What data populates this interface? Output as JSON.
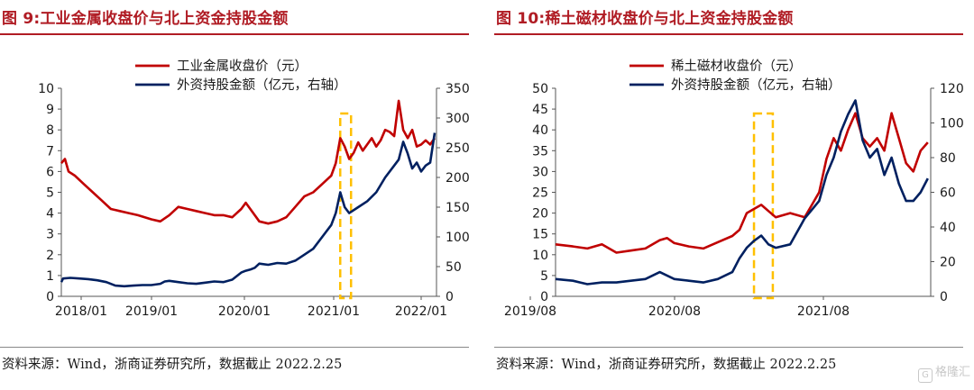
{
  "colors": {
    "red": "#c00000",
    "navy": "#002060",
    "highlight": "#ffc000",
    "title": "#b01c24"
  },
  "left": {
    "title": "图 9:工业金属收盘价与北上资金持股金额",
    "source": "资料来源：Wind，浙商证券研究所，数据截止 2022.2.25",
    "chart_data": {
      "type": "line",
      "x_ticks": [
        "2018/01",
        "2019/01",
        "2020/01",
        "2021/01",
        "2022/01"
      ],
      "y_left_ticks": [
        "0",
        "1",
        "2",
        "3",
        "4",
        "5",
        "6",
        "7",
        "8",
        "9",
        "10"
      ],
      "y_right_ticks": [
        "0",
        "50",
        "100",
        "150",
        "200",
        "250",
        "300",
        "350"
      ],
      "ylim_left": [
        0,
        10
      ],
      "ylim_right": [
        0,
        350
      ],
      "xlim": [
        2018.0,
        2022.17
      ],
      "highlight_x": [
        2021.1,
        2021.22
      ],
      "legend": "top-left",
      "series": [
        {
          "name": "工业金属收盘价（元）",
          "axis": "left",
          "color": "#c00000",
          "points": [
            [
              2018.0,
              6.4
            ],
            [
              2018.04,
              6.6
            ],
            [
              2018.08,
              6.0
            ],
            [
              2018.15,
              5.8
            ],
            [
              2018.25,
              5.4
            ],
            [
              2018.35,
              5.0
            ],
            [
              2018.45,
              4.6
            ],
            [
              2018.55,
              4.2
            ],
            [
              2018.65,
              4.1
            ],
            [
              2018.75,
              4.0
            ],
            [
              2018.85,
              3.9
            ],
            [
              2019.0,
              3.7
            ],
            [
              2019.1,
              3.6
            ],
            [
              2019.2,
              3.9
            ],
            [
              2019.3,
              4.3
            ],
            [
              2019.4,
              4.2
            ],
            [
              2019.5,
              4.1
            ],
            [
              2019.6,
              4.0
            ],
            [
              2019.7,
              3.9
            ],
            [
              2019.8,
              3.9
            ],
            [
              2019.9,
              3.8
            ],
            [
              2020.0,
              4.2
            ],
            [
              2020.05,
              4.5
            ],
            [
              2020.1,
              4.2
            ],
            [
              2020.2,
              3.6
            ],
            [
              2020.3,
              3.5
            ],
            [
              2020.4,
              3.6
            ],
            [
              2020.5,
              3.8
            ],
            [
              2020.6,
              4.3
            ],
            [
              2020.7,
              4.8
            ],
            [
              2020.8,
              5.0
            ],
            [
              2020.9,
              5.4
            ],
            [
              2021.0,
              5.8
            ],
            [
              2021.05,
              6.4
            ],
            [
              2021.1,
              7.6
            ],
            [
              2021.15,
              7.2
            ],
            [
              2021.2,
              6.6
            ],
            [
              2021.25,
              6.9
            ],
            [
              2021.3,
              7.4
            ],
            [
              2021.35,
              7.0
            ],
            [
              2021.4,
              7.3
            ],
            [
              2021.45,
              7.6
            ],
            [
              2021.5,
              7.2
            ],
            [
              2021.55,
              7.5
            ],
            [
              2021.6,
              8.0
            ],
            [
              2021.65,
              7.9
            ],
            [
              2021.7,
              7.7
            ],
            [
              2021.75,
              9.4
            ],
            [
              2021.8,
              8.0
            ],
            [
              2021.85,
              7.6
            ],
            [
              2021.9,
              8.0
            ],
            [
              2021.95,
              7.2
            ],
            [
              2022.0,
              7.3
            ],
            [
              2022.05,
              7.5
            ],
            [
              2022.1,
              7.3
            ],
            [
              2022.15,
              7.6
            ]
          ]
        },
        {
          "name": "外资持股金额（亿元，右轴）",
          "axis": "right",
          "color": "#002060",
          "points": [
            [
              2018.0,
              24
            ],
            [
              2018.02,
              30
            ],
            [
              2018.1,
              31
            ],
            [
              2018.2,
              30
            ],
            [
              2018.3,
              29
            ],
            [
              2018.4,
              27
            ],
            [
              2018.5,
              24
            ],
            [
              2018.6,
              18
            ],
            [
              2018.7,
              17
            ],
            [
              2018.8,
              18
            ],
            [
              2018.9,
              19
            ],
            [
              2019.0,
              19
            ],
            [
              2019.1,
              21
            ],
            [
              2019.15,
              25
            ],
            [
              2019.2,
              26
            ],
            [
              2019.3,
              24
            ],
            [
              2019.4,
              22
            ],
            [
              2019.5,
              21
            ],
            [
              2019.6,
              23
            ],
            [
              2019.7,
              25
            ],
            [
              2019.8,
              24
            ],
            [
              2019.9,
              28
            ],
            [
              2020.0,
              40
            ],
            [
              2020.05,
              43
            ],
            [
              2020.1,
              45
            ],
            [
              2020.15,
              48
            ],
            [
              2020.2,
              55
            ],
            [
              2020.3,
              53
            ],
            [
              2020.4,
              56
            ],
            [
              2020.5,
              55
            ],
            [
              2020.6,
              60
            ],
            [
              2020.7,
              70
            ],
            [
              2020.8,
              80
            ],
            [
              2020.9,
              100
            ],
            [
              2021.0,
              120
            ],
            [
              2021.05,
              140
            ],
            [
              2021.1,
              175
            ],
            [
              2021.15,
              150
            ],
            [
              2021.2,
              140
            ],
            [
              2021.3,
              150
            ],
            [
              2021.4,
              160
            ],
            [
              2021.5,
              175
            ],
            [
              2021.6,
              200
            ],
            [
              2021.7,
              220
            ],
            [
              2021.75,
              230
            ],
            [
              2021.8,
              260
            ],
            [
              2021.85,
              240
            ],
            [
              2021.9,
              215
            ],
            [
              2021.95,
              225
            ],
            [
              2022.0,
              210
            ],
            [
              2022.05,
              220
            ],
            [
              2022.1,
              225
            ],
            [
              2022.15,
              275
            ]
          ]
        }
      ]
    }
  },
  "right": {
    "title": "图 10:稀土磁材收盘价与北上资金持股金额",
    "source": "资料来源：Wind，浙商证券研究所，数据截止 2022.2.25",
    "chart_data": {
      "type": "line",
      "x_ticks": [
        "2019/08",
        "2020/08",
        "2021/08"
      ],
      "y_left_ticks": [
        "0",
        "5",
        "10",
        "15",
        "20",
        "25",
        "30",
        "35",
        "40",
        "45",
        "50"
      ],
      "y_right_ticks": [
        "0",
        "20",
        "40",
        "60",
        "80",
        "100",
        "120"
      ],
      "ylim_left": [
        0,
        50
      ],
      "ylim_right": [
        0,
        120
      ],
      "xlim": [
        2019.58,
        2022.17
      ],
      "highlight_x": [
        2020.95,
        2021.08
      ],
      "legend": "top-left",
      "series": [
        {
          "name": "稀土磁材收盘价（元）",
          "axis": "left",
          "color": "#c00000",
          "points": [
            [
              2019.58,
              12.5
            ],
            [
              2019.7,
              12.0
            ],
            [
              2019.8,
              11.5
            ],
            [
              2019.9,
              12.5
            ],
            [
              2020.0,
              10.5
            ],
            [
              2020.1,
              11.0
            ],
            [
              2020.2,
              11.5
            ],
            [
              2020.3,
              13.5
            ],
            [
              2020.35,
              14.0
            ],
            [
              2020.4,
              12.8
            ],
            [
              2020.5,
              12.0
            ],
            [
              2020.6,
              11.5
            ],
            [
              2020.7,
              13.0
            ],
            [
              2020.8,
              14.5
            ],
            [
              2020.85,
              16.0
            ],
            [
              2020.9,
              20.0
            ],
            [
              2020.95,
              21.0
            ],
            [
              2021.0,
              22.0
            ],
            [
              2021.05,
              20.5
            ],
            [
              2021.1,
              19.0
            ],
            [
              2021.2,
              20.0
            ],
            [
              2021.3,
              19.0
            ],
            [
              2021.35,
              22.0
            ],
            [
              2021.4,
              25.0
            ],
            [
              2021.45,
              33.0
            ],
            [
              2021.5,
              38.0
            ],
            [
              2021.55,
              35.0
            ],
            [
              2021.6,
              40.0
            ],
            [
              2021.65,
              44.0
            ],
            [
              2021.7,
              38.0
            ],
            [
              2021.75,
              36.0
            ],
            [
              2021.8,
              38.0
            ],
            [
              2021.85,
              35.0
            ],
            [
              2021.9,
              44.0
            ],
            [
              2021.95,
              38.0
            ],
            [
              2022.0,
              32.0
            ],
            [
              2022.05,
              30.0
            ],
            [
              2022.1,
              35.0
            ],
            [
              2022.15,
              37.0
            ]
          ]
        },
        {
          "name": "外资持股金额（亿元，右轴）",
          "axis": "right",
          "color": "#002060",
          "points": [
            [
              2019.58,
              10
            ],
            [
              2019.7,
              9
            ],
            [
              2019.75,
              8
            ],
            [
              2019.8,
              7
            ],
            [
              2019.9,
              8
            ],
            [
              2020.0,
              8
            ],
            [
              2020.1,
              9
            ],
            [
              2020.2,
              10
            ],
            [
              2020.3,
              14
            ],
            [
              2020.4,
              10
            ],
            [
              2020.5,
              9
            ],
            [
              2020.6,
              8
            ],
            [
              2020.7,
              10
            ],
            [
              2020.8,
              14
            ],
            [
              2020.85,
              22
            ],
            [
              2020.9,
              28
            ],
            [
              2020.95,
              32
            ],
            [
              2021.0,
              35
            ],
            [
              2021.05,
              30
            ],
            [
              2021.1,
              28
            ],
            [
              2021.2,
              30
            ],
            [
              2021.3,
              45
            ],
            [
              2021.35,
              50
            ],
            [
              2021.4,
              55
            ],
            [
              2021.45,
              70
            ],
            [
              2021.5,
              80
            ],
            [
              2021.55,
              95
            ],
            [
              2021.6,
              105
            ],
            [
              2021.65,
              113
            ],
            [
              2021.7,
              90
            ],
            [
              2021.75,
              80
            ],
            [
              2021.8,
              85
            ],
            [
              2021.85,
              70
            ],
            [
              2021.9,
              80
            ],
            [
              2021.95,
              65
            ],
            [
              2022.0,
              55
            ],
            [
              2022.05,
              55
            ],
            [
              2022.1,
              60
            ],
            [
              2022.15,
              68
            ]
          ]
        }
      ]
    }
  },
  "watermark": "格隆汇"
}
